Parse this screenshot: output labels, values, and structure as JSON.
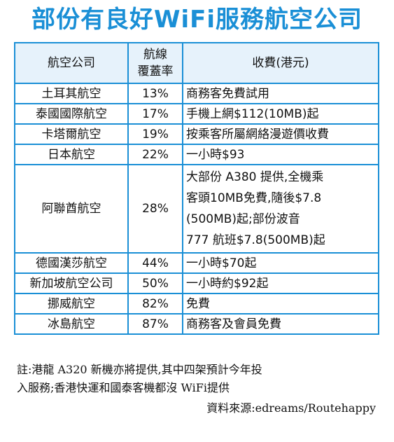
{
  "title": "部份有良好WiFi服務航空公司",
  "colors": {
    "accent": "#1a8fd6",
    "header_bg": "#e6f2fb"
  },
  "table": {
    "headers": [
      "航空公司",
      "航線覆蓋率",
      "收費(港元)"
    ],
    "header_cov_lines": [
      "航線",
      "覆蓋率"
    ],
    "rows": [
      {
        "airline": "土耳其航空",
        "coverage": "13%",
        "fee": "商務客免費試用"
      },
      {
        "airline": "泰國國際航空",
        "coverage": "17%",
        "fee": "手機上網$112(10MB)起"
      },
      {
        "airline": "卡塔爾航空",
        "coverage": "19%",
        "fee": "按乘客所屬網絡漫遊價收費"
      },
      {
        "airline": "日本航空",
        "coverage": "22%",
        "fee": "一小時$93"
      },
      {
        "airline": "阿聯酋航空",
        "coverage": "28%",
        "fee_lines": [
          "大部份 A380 提供,全機乘",
          "客頭10MB免費,隨後$7.8",
          "(500MB)起;部份波音",
          "777 航班$7.8(500MB)起"
        ]
      },
      {
        "airline": "德國漢莎航空",
        "coverage": "44%",
        "fee": "一小時$70起"
      },
      {
        "airline": "新加坡航空公司",
        "coverage": "50%",
        "fee": "一小時約$92起"
      },
      {
        "airline": "挪威航空",
        "coverage": "82%",
        "fee": "免費"
      },
      {
        "airline": "冰島航空",
        "coverage": "87%",
        "fee": "商務客及會員免費"
      }
    ]
  },
  "note_line1": "註:港龍 A320 新機亦將提供,其中四架預計今年投",
  "note_line2": "入服務;香港快運和國泰客機都沒 WiFi提供",
  "source": "資料來源:edreams/Routehappy"
}
